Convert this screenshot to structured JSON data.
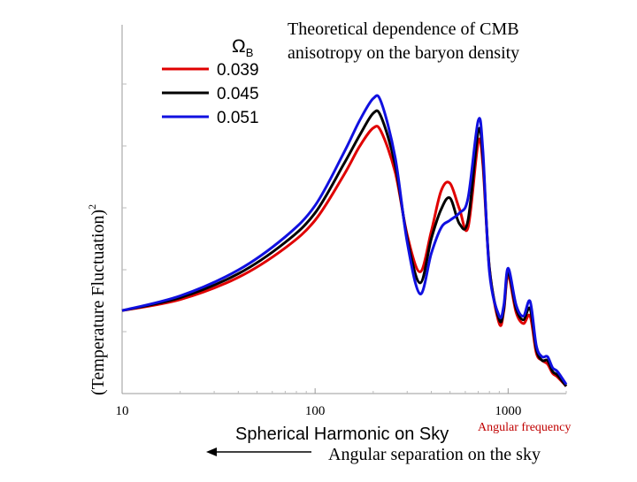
{
  "slide": {
    "title": "Theoretical dependence of CMB anisotropy on the baryon density",
    "title_line1": "Theoretical dependence of CMB",
    "title_line2": "anisotropy on the baryon density",
    "angular_frequency_label": "Angular frequency",
    "angular_separation_label": "Angular separation on the sky",
    "angular_frequency_color": "#c00000"
  },
  "chart_data": {
    "type": "line",
    "xscale": "log",
    "xlim": [
      10,
      2000
    ],
    "xlabel": "Spherical Harmonic on Sky",
    "ylabel": "(Temperature Fluctuation)",
    "ylabel_superscript": "2",
    "xticks": [
      10,
      100,
      1000
    ],
    "xtick_labels": [
      "10",
      "100",
      "1000"
    ],
    "yticks_labeled": false,
    "legend": {
      "title": "Ω",
      "title_subscript": "B",
      "placement": "top-left"
    },
    "series": [
      {
        "name": "0.039",
        "color": "#e00000",
        "x": [
          10,
          20,
          40,
          70,
          100,
          140,
          170,
          200,
          220,
          260,
          300,
          350,
          400,
          450,
          500,
          560,
          620,
          700,
          740,
          800,
          900,
          950,
          1000,
          1100,
          1200,
          1300,
          1400,
          1500,
          1600,
          1700,
          1800,
          2000
        ],
        "y": [
          0.225,
          0.255,
          0.315,
          0.395,
          0.47,
          0.59,
          0.67,
          0.72,
          0.71,
          0.6,
          0.43,
          0.33,
          0.44,
          0.55,
          0.57,
          0.5,
          0.45,
          0.68,
          0.62,
          0.34,
          0.19,
          0.225,
          0.32,
          0.22,
          0.19,
          0.21,
          0.11,
          0.09,
          0.08,
          0.055,
          0.045,
          0.02
        ]
      },
      {
        "name": "0.045",
        "color": "#000000",
        "x": [
          10,
          20,
          40,
          70,
          100,
          140,
          170,
          200,
          220,
          260,
          300,
          350,
          400,
          450,
          500,
          560,
          620,
          700,
          740,
          800,
          900,
          950,
          1000,
          1100,
          1200,
          1300,
          1400,
          1500,
          1600,
          1700,
          1800,
          2000
        ],
        "y": [
          0.225,
          0.26,
          0.325,
          0.41,
          0.49,
          0.62,
          0.7,
          0.76,
          0.75,
          0.62,
          0.42,
          0.3,
          0.42,
          0.5,
          0.53,
          0.46,
          0.47,
          0.71,
          0.64,
          0.34,
          0.2,
          0.23,
          0.33,
          0.23,
          0.2,
          0.23,
          0.12,
          0.09,
          0.09,
          0.06,
          0.05,
          0.02
        ]
      },
      {
        "name": "0.051",
        "color": "#1010e0",
        "x": [
          10,
          20,
          40,
          70,
          100,
          140,
          170,
          200,
          220,
          260,
          300,
          350,
          400,
          450,
          500,
          560,
          620,
          700,
          740,
          800,
          900,
          950,
          1000,
          1100,
          1200,
          1300,
          1400,
          1500,
          1600,
          1700,
          1800,
          2000
        ],
        "y": [
          0.225,
          0.265,
          0.335,
          0.425,
          0.51,
          0.65,
          0.74,
          0.8,
          0.79,
          0.64,
          0.41,
          0.27,
          0.38,
          0.45,
          0.47,
          0.49,
          0.53,
          0.74,
          0.66,
          0.33,
          0.21,
          0.24,
          0.34,
          0.24,
          0.21,
          0.25,
          0.13,
          0.1,
          0.1,
          0.07,
          0.06,
          0.025
        ]
      }
    ]
  }
}
